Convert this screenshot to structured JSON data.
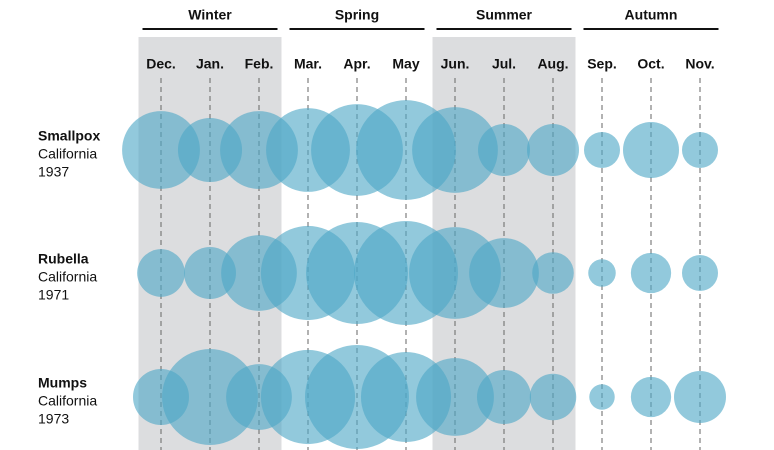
{
  "chart_data": {
    "type": "bubble",
    "seasons": [
      {
        "name": "Winter",
        "months": [
          0,
          1,
          2
        ],
        "shaded": true
      },
      {
        "name": "Spring",
        "months": [
          3,
          4,
          5
        ],
        "shaded": false
      },
      {
        "name": "Summer",
        "months": [
          6,
          7,
          8
        ],
        "shaded": true
      },
      {
        "name": "Autumn",
        "months": [
          9,
          10,
          11
        ],
        "shaded": false
      }
    ],
    "categories": [
      "Dec.",
      "Jan.",
      "Feb.",
      "Mar.",
      "Apr.",
      "May",
      "Jun.",
      "Jul.",
      "Aug.",
      "Sep.",
      "Oct.",
      "Nov."
    ],
    "series": [
      {
        "name": "Smallpox",
        "place": "California",
        "year": "1937",
        "color": "#4fa8c6",
        "values": [
          56,
          38,
          56,
          65,
          78,
          92,
          68,
          25,
          25,
          12,
          29,
          12
        ]
      },
      {
        "name": "Rubella",
        "place": "California",
        "year": "1971",
        "color": "#4fa8c6",
        "values": [
          21,
          25,
          53,
          82,
          96,
          100,
          78,
          45,
          16,
          7,
          15,
          12
        ]
      },
      {
        "name": "Mumps",
        "place": "California",
        "year": "1973",
        "color": "#4fa8c6",
        "values": [
          29,
          85,
          40,
          82,
          100,
          75,
          56,
          27,
          20,
          6,
          15,
          25
        ]
      }
    ]
  }
}
